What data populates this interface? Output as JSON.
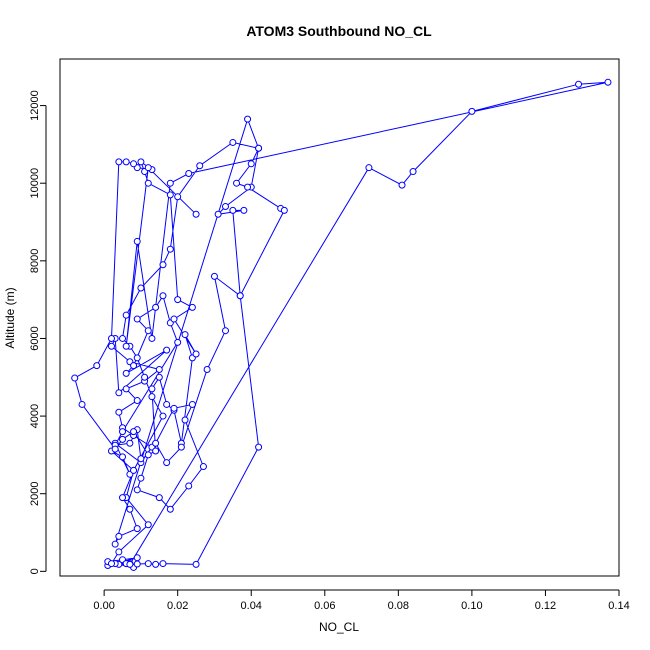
{
  "chart_data": {
    "type": "line",
    "title": "ATOM3 Southbound NO_CL",
    "xlabel": "NO_CL",
    "ylabel": "Altitude (m)",
    "xlim": [
      -0.012,
      0.14
    ],
    "ylim": [
      -120,
      13200
    ],
    "xticks": [
      0.0,
      0.02,
      0.04,
      0.06,
      0.08,
      0.1,
      0.12,
      0.14
    ],
    "xtick_labels": [
      "0.00",
      "0.02",
      "0.04",
      "0.06",
      "0.08",
      "0.10",
      "0.12",
      "0.14"
    ],
    "yticks": [
      0,
      2000,
      4000,
      6000,
      8000,
      10000,
      12000
    ],
    "ytick_labels": [
      "0",
      "2000",
      "4000",
      "6000",
      "8000",
      "10000",
      "12000"
    ],
    "grid": false,
    "legend": "none",
    "marker": "open-circle",
    "series": [
      {
        "color": "#0000ff",
        "x": [
          0.001,
          0.004,
          0.007,
          0.001,
          0.005,
          0.009,
          0.003,
          0.008,
          0.006,
          0.002,
          0.004,
          0.012,
          0.006,
          0.008,
          0.002,
          0.005,
          0.007,
          0.003,
          0.01,
          0.013,
          0.008,
          0.005,
          0.004,
          0.009,
          0.006,
          0.011,
          0.015,
          0.007,
          0.002,
          0.003,
          0.004,
          0.017,
          0.006,
          0.008,
          0.012,
          0.009,
          0.014,
          0.016,
          0.018,
          0.02,
          0.005,
          0.003,
          0.007,
          0.009,
          0.01,
          0.014,
          0.013,
          0.015,
          0.017,
          0.019,
          0.021,
          0.024,
          0.022,
          0.025,
          0.019,
          0.024,
          0.02,
          0.018,
          0.012,
          0.011,
          0.01,
          0.013,
          0.009,
          0.008,
          0.006,
          0.004,
          0.002,
          -0.002,
          -0.008,
          -0.006,
          0.003,
          0.005,
          0.008,
          0.012,
          0.01,
          0.009,
          0.015,
          0.018,
          0.023,
          0.027,
          0.022,
          0.024,
          0.019,
          0.014,
          0.017,
          0.021,
          0.028,
          0.033,
          0.03,
          0.037,
          0.035,
          0.038,
          0.031,
          0.033,
          0.04,
          0.042,
          0.035,
          0.026,
          0.02,
          0.018,
          0.016,
          0.01,
          0.006,
          0.005,
          0.007,
          0.009,
          0.011,
          0.013,
          0.016,
          0.008,
          0.005,
          0.007,
          0.009,
          0.004,
          0.003,
          0.039,
          0.042,
          0.04,
          0.036,
          0.039,
          0.048,
          0.049,
          0.037,
          0.042,
          0.025,
          0.016,
          0.014,
          0.012,
          0.009,
          0.006,
          0.007,
          0.072,
          0.081,
          0.084,
          0.1,
          0.129,
          0.137,
          0.023,
          0.018,
          0.013,
          0.009,
          0.006,
          0.012,
          0.025
        ],
        "y": [
          150,
          180,
          200,
          250,
          300,
          350,
          200,
          100,
          200,
          200,
          500,
          1200,
          1900,
          2600,
          3100,
          2950,
          2500,
          3300,
          2800,
          3200,
          3500,
          3700,
          4100,
          4400,
          4700,
          4900,
          5200,
          5400,
          5800,
          6000,
          4600,
          5700,
          5100,
          5300,
          6200,
          6500,
          6800,
          7100,
          6400,
          5900,
          3600,
          3250,
          3300,
          3650,
          2900,
          3100,
          4700,
          5000,
          4300,
          4150,
          3300,
          5500,
          6100,
          5600,
          6500,
          6800,
          7000,
          9700,
          10000,
          10300,
          10550,
          10350,
          10400,
          10500,
          10550,
          10550,
          6000,
          5300,
          4980,
          4300,
          3150,
          3400,
          3600,
          3000,
          2400,
          2100,
          1900,
          1600,
          2200,
          2700,
          3900,
          4300,
          4200,
          3300,
          2800,
          3200,
          5200,
          6200,
          7600,
          7100,
          9300,
          9300,
          9200,
          9400,
          9900,
          10900,
          11050,
          10450,
          9650,
          8300,
          7900,
          7300,
          6600,
          6000,
          5800,
          5500,
          5000,
          4500,
          4000,
          2600,
          1900,
          1600,
          1100,
          900,
          700,
          11650,
          10900,
          10500,
          10000,
          9900,
          9350,
          9300,
          7100,
          3200,
          180,
          200,
          180,
          200,
          190,
          200,
          180,
          10400,
          9950,
          10300,
          11850,
          12550,
          12600,
          10250,
          10000,
          6000,
          8500,
          5800,
          10400,
          9200
        ]
      }
    ]
  }
}
